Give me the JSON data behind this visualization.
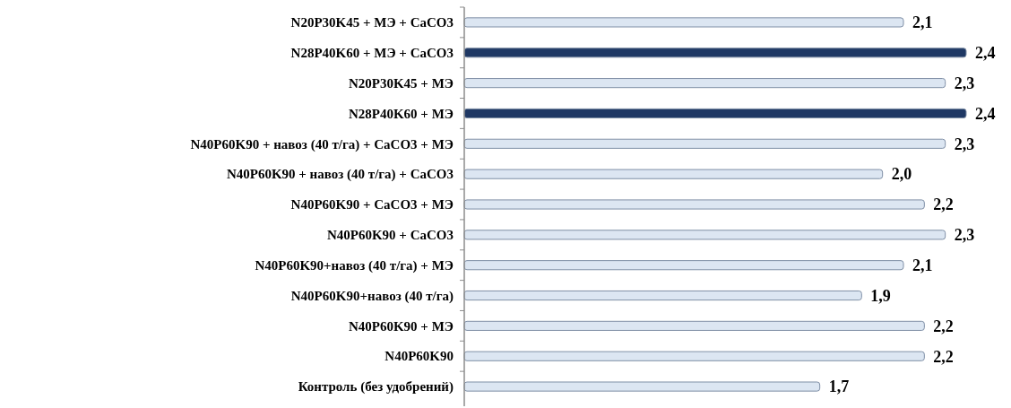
{
  "chart_data": {
    "type": "bar",
    "orientation": "horizontal",
    "value_labels": [
      "2,1",
      "2,4",
      "2,3",
      "2,4",
      "2,3",
      "2,0",
      "2,2",
      "2,3",
      "2,1",
      "1,9",
      "2,2",
      "2,2",
      "1,7"
    ],
    "categories": [
      "N20P30K45 + МЭ + CaCO3",
      "N28P40K60 + МЭ + CaCO3",
      "N20P30K45 + МЭ",
      "N28P40K60 + МЭ",
      "N40P60K90 + навоз (40 т/га) + CaCO3 + МЭ",
      "N40P60K90 + навоз (40 т/га) + CaCO3",
      "N40P60K90 + CaCO3 + МЭ",
      "N40P60K90 + CaCO3",
      "N40P60K90+навоз (40 т/га) + МЭ",
      "N40P60K90+навоз (40 т/га)",
      "N40P60K90 + МЭ",
      "N40P60K90",
      "Контроль (без удобрений)"
    ],
    "values": [
      2.1,
      2.4,
      2.3,
      2.4,
      2.3,
      2.0,
      2.2,
      2.3,
      2.1,
      1.9,
      2.2,
      2.2,
      1.7
    ],
    "colors": [
      "#dce6f2",
      "#1f3864",
      "#dce6f2",
      "#1f3864",
      "#dce6f2",
      "#dce6f2",
      "#dce6f2",
      "#dce6f2",
      "#dce6f2",
      "#dce6f2",
      "#dce6f2",
      "#dce6f2",
      "#dce6f2"
    ]
  }
}
